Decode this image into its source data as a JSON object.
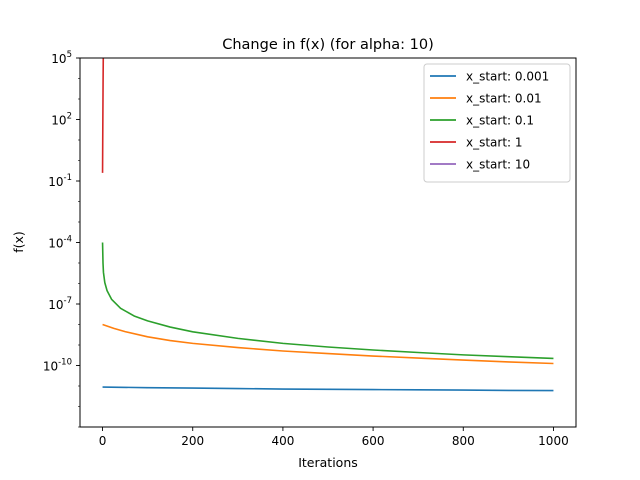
{
  "chart_data": {
    "type": "line",
    "title": "Change in f(x) (for alpha: 10)",
    "xlabel": "Iterations",
    "ylabel": "f(x)",
    "xlim": [
      -50,
      1050
    ],
    "ylim": [
      -13,
      5
    ],
    "yscale": "log",
    "xticks": [
      0,
      200,
      400,
      600,
      800,
      1000
    ],
    "yticks": [
      {
        "exp": 5,
        "label": "10^5"
      },
      {
        "exp": 2,
        "label": "10^2"
      },
      {
        "exp": -1,
        "label": "10^-1"
      },
      {
        "exp": -4,
        "label": "10^-4"
      },
      {
        "exp": -7,
        "label": "10^-7"
      },
      {
        "exp": -10,
        "label": "10^-10"
      }
    ],
    "legend": "top-right",
    "grid": false,
    "series": [
      {
        "name": "x_start: 0.001",
        "color": "#1f77b4",
        "x": [
          0,
          100,
          200,
          300,
          400,
          500,
          600,
          700,
          800,
          900,
          1000
        ],
        "y": [
          8.9e-12,
          8.3e-12,
          7.9e-12,
          7.5e-12,
          7.1e-12,
          6.9e-12,
          6.7e-12,
          6.5e-12,
          6.3e-12,
          6.1e-12,
          6e-12
        ]
      },
      {
        "name": "x_start: 0.01",
        "color": "#ff7f0e",
        "x": [
          0,
          25,
          50,
          100,
          150,
          200,
          300,
          400,
          500,
          600,
          700,
          800,
          900,
          1000
        ],
        "y": [
          1e-08,
          6.5e-09,
          4.5e-09,
          2.5e-09,
          1.65e-09,
          1.2e-09,
          7.5e-10,
          5.1e-10,
          3.8e-10,
          2.9e-10,
          2.3e-10,
          1.85e-10,
          1.5e-10,
          1.25e-10
        ]
      },
      {
        "name": "x_start: 0.1",
        "color": "#2ca02c",
        "x": [
          0,
          1,
          2,
          5,
          10,
          20,
          40,
          70,
          100,
          150,
          200,
          300,
          400,
          500,
          600,
          700,
          800,
          900,
          1000
        ],
        "y": [
          0.0001,
          1e-05,
          3.5e-06,
          1.1e-06,
          4.5e-07,
          1.7e-07,
          6.2e-08,
          2.6e-08,
          1.5e-08,
          7.5e-09,
          4.4e-09,
          2.1e-09,
          1.2e-09,
          8e-10,
          5.7e-10,
          4.3e-10,
          3.3e-10,
          2.7e-10,
          2.2e-10
        ]
      },
      {
        "name": "x_start: 1",
        "color": "#d62728",
        "x": [
          0,
          0.4,
          0.8,
          1.2,
          1.6,
          2.0
        ],
        "y": [
          0.25,
          10,
          300,
          8000,
          100000,
          1000000
        ]
      },
      {
        "name": "x_start: 10",
        "color": "#9467bd",
        "x": [],
        "y": []
      }
    ]
  }
}
